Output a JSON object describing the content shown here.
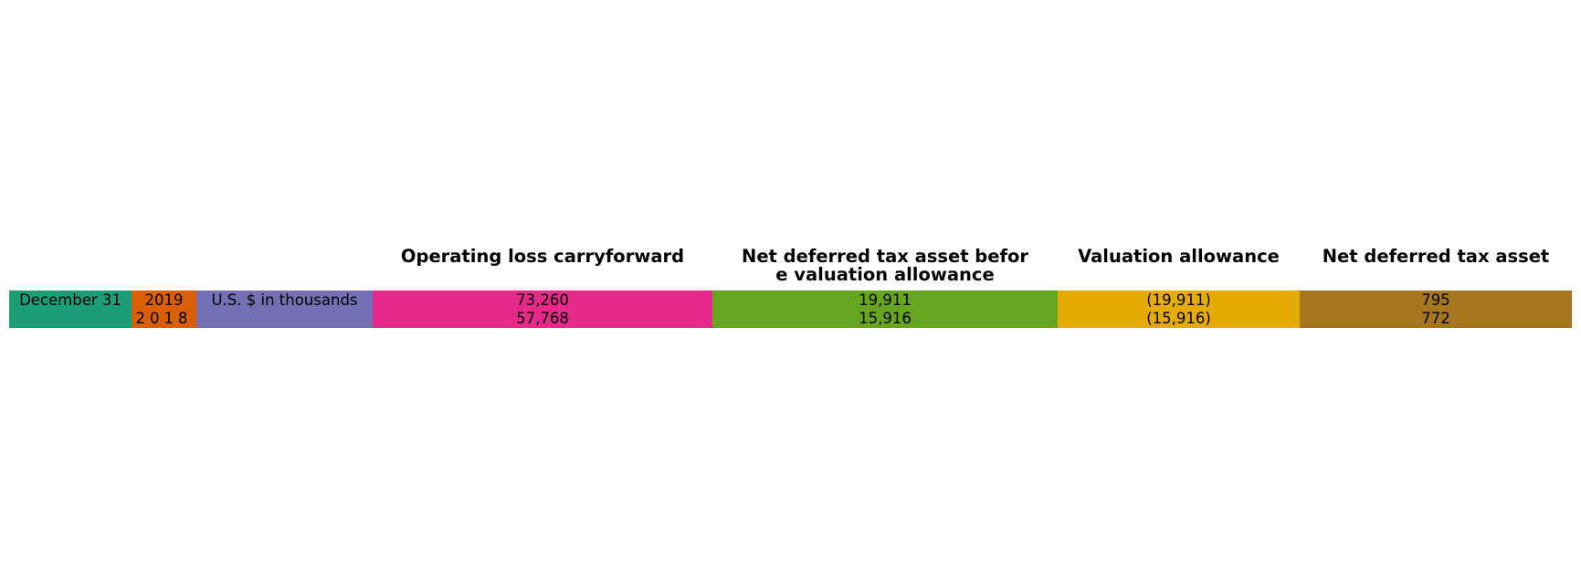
{
  "chart_data": {
    "type": "table",
    "columns": [
      "December 31",
      "",
      "U.S. $ in thousands",
      "Operating loss carryforward",
      "Net deferred tax asset befor\ne valuation allowance",
      "Valuation allowance",
      "Net deferred tax asset"
    ],
    "rows": [
      {
        "year": "2019",
        "operating_loss_carryforward": "73,260",
        "net_deferred_before_allowance": "19,911",
        "valuation_allowance": "(19,911)",
        "net_deferred_tax_asset": "795"
      },
      {
        "year": "2018",
        "operating_loss_carryforward": "57,768",
        "net_deferred_before_allowance": "15,916",
        "valuation_allowance": "(15,916)",
        "net_deferred_tax_asset": "772"
      }
    ],
    "column_colors": [
      "#1b9e77",
      "#d95f02",
      "#7570b3",
      "#e7298a",
      "#66a61e",
      "#e6ab02",
      "#a6761d"
    ]
  }
}
